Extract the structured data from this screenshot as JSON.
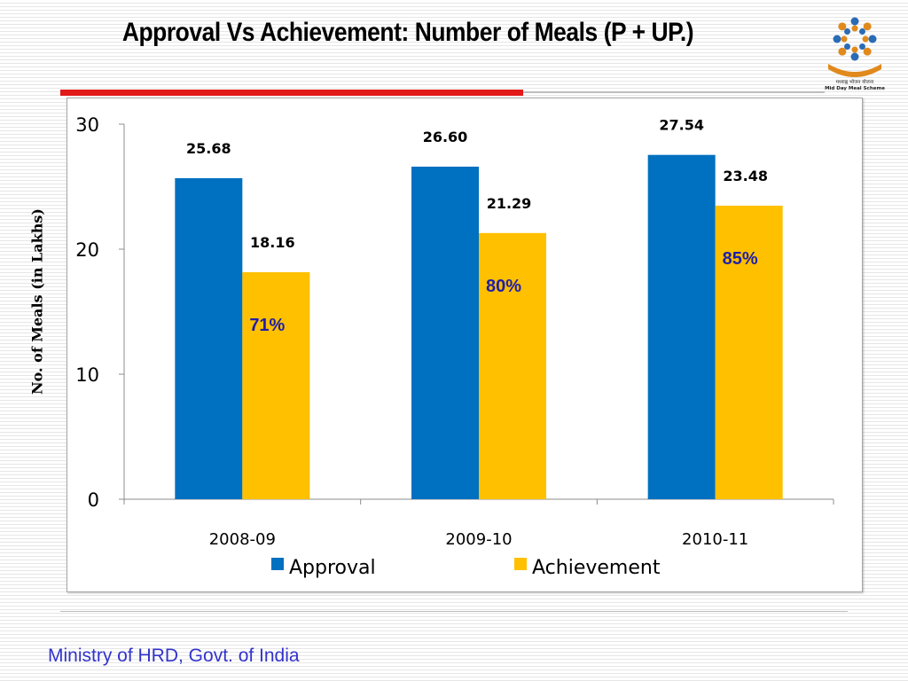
{
  "title": "Approval Vs Achievement:  Number of Meals (P + UP.)",
  "footer": "Ministry of HRD, Govt. of India",
  "logo": {
    "icon": "mid-day-meal-logo",
    "text_line1": "मध्याह्न भोजन योजना",
    "text_line2": "Mid Day Meal Scheme"
  },
  "colors": {
    "approval": "#0070c0",
    "achievement": "#ffc000",
    "percent_text": "#1f1fa8",
    "title_rule": "#e21a1a"
  },
  "chart_data": {
    "type": "bar",
    "categories": [
      "2008-09",
      "2009-10",
      "2010-11"
    ],
    "series": [
      {
        "name": "Approval",
        "values": [
          25.68,
          26.6,
          27.54
        ],
        "labels": [
          "25.68",
          "26.60",
          "27.54"
        ]
      },
      {
        "name": "Achievement",
        "values": [
          18.16,
          21.29,
          23.48
        ],
        "labels": [
          "18.16",
          "21.29",
          "23.48"
        ]
      }
    ],
    "percentages": [
      "71%",
      "80%",
      "85%"
    ],
    "ylabel": "No. of Meals (in Lakhs)",
    "ylim": [
      0,
      30
    ],
    "yticks": [
      0,
      10,
      20,
      30
    ],
    "grid": false,
    "legend": "bottom"
  }
}
